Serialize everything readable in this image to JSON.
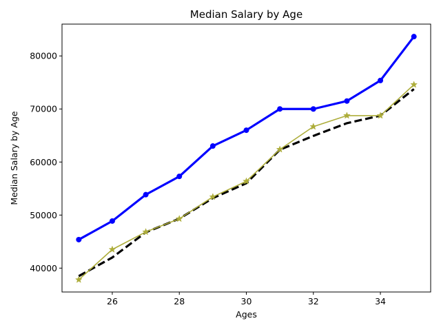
{
  "chart_data": {
    "type": "line",
    "title": "Median Salary by Age",
    "xlabel": "Ages",
    "ylabel": "Median Salary by Age",
    "x": [
      25,
      26,
      27,
      28,
      29,
      30,
      31,
      32,
      33,
      34,
      35
    ],
    "xlim": [
      24.5,
      35.5
    ],
    "ylim": [
      35500,
      86000
    ],
    "xticks": [
      26,
      28,
      30,
      32,
      34
    ],
    "yticks": [
      40000,
      50000,
      60000,
      70000,
      80000
    ],
    "grid": false,
    "legend": "none",
    "series": [
      {
        "values": [
          45372,
          48876,
          53850,
          57287,
          63016,
          65998,
          70003,
          70000,
          71496,
          75370,
          83640
        ],
        "color": "#0000ff",
        "line_style": "solid",
        "marker": "circle"
      },
      {
        "values": [
          38496,
          42000,
          46752,
          49320,
          53200,
          56000,
          62316,
          64928,
          67317,
          68748,
          73752
        ],
        "color": "#000000",
        "line_style": "dashed",
        "marker": "none"
      },
      {
        "values": [
          37810,
          43515,
          46823,
          49293,
          53437,
          56373,
          62375,
          66674,
          68745,
          68746,
          74583
        ],
        "color": "#adad3a",
        "line_style": "solid",
        "marker": "star"
      }
    ]
  }
}
